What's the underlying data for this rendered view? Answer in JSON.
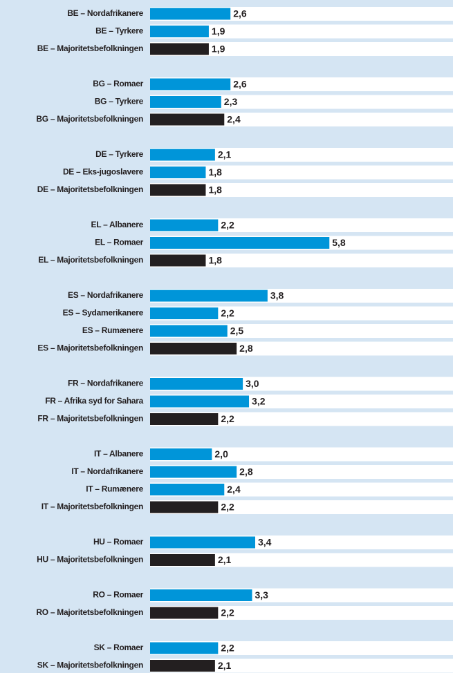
{
  "chart_data": {
    "type": "bar",
    "categories": [
      "BE – Nordafrikanere",
      "BE – Tyrkere",
      "BE – Majoritetsbefolkningen",
      null,
      "BG – Romaer",
      "BG – Tyrkere",
      "BG – Majoritetsbefolkningen",
      null,
      "DE – Tyrkere",
      "DE – Eks-jugoslavere",
      "DE – Majoritetsbefolkningen",
      null,
      "EL – Albanere",
      "EL – Romaer",
      "EL – Majoritetsbefolkningen",
      null,
      "ES – Nordafrikanere",
      "ES – Sydamerikanere",
      "ES – Rumænere",
      "ES – Majoritetsbefolkningen",
      null,
      "FR – Nordafrikanere",
      "FR – Afrika syd for Sahara",
      "FR – Majoritetsbefolkningen",
      null,
      "IT – Albanere",
      "IT – Nordafrikanere",
      "IT – Rumænere",
      "IT – Majoritetsbefolkningen",
      null,
      "HU – Romaer",
      "HU – Majoritetsbefolkningen",
      null,
      "RO – Romaer",
      "RO – Majoritetsbefolkningen",
      null,
      "SK – Romaer",
      "SK – Majoritetsbefolkningen"
    ],
    "values": [
      2.6,
      1.9,
      1.9,
      null,
      2.6,
      2.3,
      2.4,
      null,
      2.1,
      1.8,
      1.8,
      null,
      2.2,
      5.8,
      1.8,
      null,
      3.8,
      2.2,
      2.5,
      2.8,
      null,
      3.0,
      3.2,
      2.2,
      null,
      2.0,
      2.8,
      2.4,
      2.2,
      null,
      3.4,
      2.1,
      null,
      3.3,
      2.2,
      null,
      2.2,
      2.1
    ],
    "value_labels": [
      "2,6",
      "1,9",
      "1,9",
      null,
      "2,6",
      "2,3",
      "2,4",
      null,
      "2,1",
      "1,8",
      "1,8",
      null,
      "2,2",
      "5,8",
      "1,8",
      null,
      "3,8",
      "2,2",
      "2,5",
      "2,8",
      null,
      "3,0",
      "3,2",
      "2,2",
      null,
      "2,0",
      "2,8",
      "2,4",
      "2,2",
      null,
      "3,4",
      "2,1",
      null,
      "3,3",
      "2,2",
      null,
      "2,2",
      "2,1"
    ],
    "colors": [
      "#0095d9",
      "#0095d9",
      "#231f20",
      null,
      "#0095d9",
      "#0095d9",
      "#231f20",
      null,
      "#0095d9",
      "#0095d9",
      "#231f20",
      null,
      "#0095d9",
      "#0095d9",
      "#231f20",
      null,
      "#0095d9",
      "#0095d9",
      "#0095d9",
      "#231f20",
      null,
      "#0095d9",
      "#0095d9",
      "#231f20",
      null,
      "#0095d9",
      "#0095d9",
      "#0095d9",
      "#231f20",
      null,
      "#0095d9",
      "#231f20",
      null,
      "#0095d9",
      "#231f20",
      null,
      "#0095d9",
      "#231f20"
    ]
  }
}
